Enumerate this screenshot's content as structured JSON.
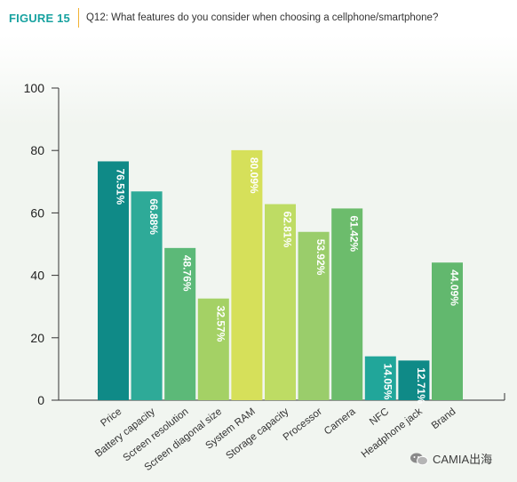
{
  "header": {
    "figure_label": "FIGURE 15",
    "question": "Q12: What features do you consider when choosing a cellphone/smartphone?"
  },
  "watermark": {
    "text": "CAMIA出海"
  },
  "chart_data": {
    "type": "bar",
    "categories": [
      "Price",
      "Battery capacity",
      "Screen resolution",
      "Screen diagonal size",
      "System RAM",
      "Storage capacity",
      "Processor",
      "Camera",
      "NFC",
      "Headphone jack",
      "Brand"
    ],
    "values": [
      76.51,
      66.88,
      48.76,
      32.57,
      80.09,
      62.81,
      53.92,
      61.42,
      14.05,
      12.71,
      44.09
    ],
    "data_labels": [
      "76.51%",
      "66.88%",
      "48.76%",
      "32.57%",
      "80.09%",
      "62.81%",
      "53.92%",
      "61.42%",
      "14.05%",
      "12.71%",
      "44.09%"
    ],
    "colors": [
      "#0f8a87",
      "#2eaa98",
      "#5cb978",
      "#a4d165",
      "#d6e05a",
      "#bedc64",
      "#9acd6b",
      "#6cbc6c",
      "#21a69a",
      "#0f8a87",
      "#62b86e"
    ],
    "yticks": [
      "0",
      "20",
      "40",
      "60",
      "80",
      "100"
    ],
    "ylim": [
      0,
      100
    ],
    "grid": false,
    "xlabel": "",
    "ylabel": ""
  }
}
